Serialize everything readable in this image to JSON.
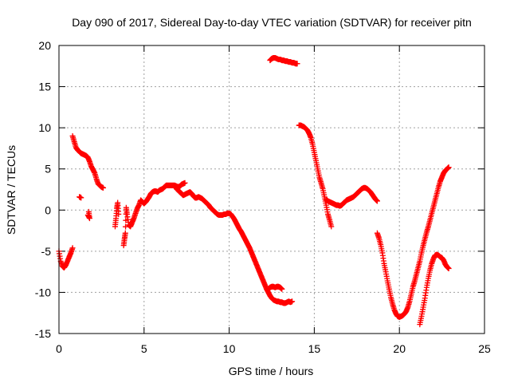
{
  "chart_data": {
    "type": "scatter",
    "title": "Day 090 of 2017, Sidereal Day-to-day VTEC variation (SDTVAR) for receiver pitn",
    "xlabel": "GPS time / hours",
    "ylabel": "SDTVAR / TECUs",
    "xlim": [
      0,
      25
    ],
    "ylim": [
      -15,
      20
    ],
    "xticks": [
      0,
      5,
      10,
      15,
      20,
      25
    ],
    "yticks": [
      -15,
      -10,
      -5,
      0,
      5,
      10,
      15,
      20
    ],
    "grid": true,
    "marker": "plus",
    "color": "#ff0000",
    "segments": [
      [
        [
          0.0,
          -5.0
        ],
        [
          0.1,
          -6.2
        ],
        [
          0.2,
          -6.8
        ],
        [
          0.3,
          -7.0
        ],
        [
          0.4,
          -6.7
        ],
        [
          0.5,
          -6.2
        ],
        [
          0.6,
          -5.7
        ],
        [
          0.7,
          -5.2
        ],
        [
          0.8,
          -4.6
        ]
      ],
      [
        [
          0.8,
          9.0
        ],
        [
          0.9,
          8.3
        ],
        [
          1.0,
          7.6
        ],
        [
          1.1,
          7.3
        ],
        [
          1.2,
          7.1
        ],
        [
          1.3,
          6.9
        ],
        [
          1.4,
          6.8
        ],
        [
          1.5,
          6.7
        ],
        [
          1.6,
          6.6
        ],
        [
          1.7,
          6.4
        ],
        [
          1.8,
          5.9
        ],
        [
          1.9,
          5.3
        ],
        [
          2.0,
          4.9
        ],
        [
          2.1,
          4.5
        ],
        [
          2.2,
          3.8
        ],
        [
          2.3,
          3.2
        ],
        [
          2.4,
          3.0
        ],
        [
          2.5,
          2.8
        ],
        [
          2.6,
          2.7
        ]
      ],
      [
        [
          1.2,
          1.6
        ],
        [
          1.3,
          1.5
        ]
      ],
      [
        [
          1.7,
          -0.6
        ],
        [
          1.8,
          -1.0
        ],
        [
          1.75,
          -0.2
        ]
      ],
      [
        [
          3.3,
          -2.0
        ],
        [
          3.35,
          -1.0
        ],
        [
          3.4,
          0.2
        ],
        [
          3.45,
          0.9
        ],
        [
          3.5,
          -0.5
        ]
      ],
      [
        [
          3.8,
          -4.3
        ],
        [
          3.85,
          -3.5
        ],
        [
          3.9,
          -2.8
        ],
        [
          3.95,
          0.3
        ],
        [
          4.0,
          -0.5
        ],
        [
          4.1,
          -1.8
        ],
        [
          4.2,
          -2.0
        ],
        [
          4.3,
          -1.5
        ],
        [
          4.4,
          -1.0
        ],
        [
          4.5,
          -0.4
        ],
        [
          4.6,
          0.2
        ],
        [
          4.7,
          0.6
        ],
        [
          4.8,
          1.2
        ],
        [
          4.9,
          1.0
        ],
        [
          5.0,
          0.8
        ],
        [
          5.1,
          1.0
        ],
        [
          5.2,
          1.3
        ],
        [
          5.3,
          1.6
        ],
        [
          5.4,
          2.0
        ],
        [
          5.5,
          2.2
        ],
        [
          5.6,
          2.3
        ],
        [
          5.7,
          2.3
        ],
        [
          5.8,
          2.2
        ],
        [
          5.9,
          2.4
        ],
        [
          6.0,
          2.5
        ],
        [
          6.1,
          2.6
        ],
        [
          6.2,
          2.8
        ],
        [
          6.3,
          3.0
        ],
        [
          6.4,
          3.0
        ],
        [
          6.5,
          3.0
        ],
        [
          6.6,
          3.0
        ],
        [
          6.7,
          3.0
        ],
        [
          6.8,
          3.0
        ],
        [
          6.9,
          2.9
        ],
        [
          7.0,
          2.8
        ],
        [
          7.1,
          2.9
        ],
        [
          7.2,
          3.1
        ],
        [
          7.3,
          3.2
        ],
        [
          7.4,
          3.3
        ]
      ],
      [
        [
          6.9,
          2.6
        ],
        [
          7.0,
          2.4
        ],
        [
          7.1,
          2.2
        ],
        [
          7.2,
          2.0
        ],
        [
          7.3,
          1.8
        ],
        [
          7.4,
          1.9
        ],
        [
          7.5,
          2.0
        ],
        [
          7.6,
          2.1
        ],
        [
          7.7,
          2.2
        ],
        [
          7.8,
          2.0
        ],
        [
          7.9,
          1.7
        ],
        [
          8.0,
          1.5
        ],
        [
          8.1,
          1.5
        ],
        [
          8.2,
          1.6
        ],
        [
          8.3,
          1.5
        ],
        [
          8.4,
          1.4
        ],
        [
          8.5,
          1.2
        ],
        [
          8.6,
          1.0
        ],
        [
          8.7,
          0.8
        ],
        [
          8.8,
          0.6
        ],
        [
          8.9,
          0.3
        ],
        [
          9.0,
          0.1
        ],
        [
          9.1,
          -0.1
        ],
        [
          9.2,
          -0.3
        ],
        [
          9.3,
          -0.5
        ],
        [
          9.4,
          -0.6
        ],
        [
          9.5,
          -0.6
        ],
        [
          9.6,
          -0.6
        ],
        [
          9.7,
          -0.5
        ],
        [
          9.8,
          -0.5
        ],
        [
          9.9,
          -0.4
        ],
        [
          10.0,
          -0.4
        ],
        [
          10.1,
          -0.5
        ],
        [
          10.2,
          -0.8
        ],
        [
          10.3,
          -1.1
        ],
        [
          10.4,
          -1.5
        ],
        [
          10.5,
          -1.9
        ],
        [
          10.6,
          -2.3
        ],
        [
          10.7,
          -2.6
        ],
        [
          10.8,
          -3.0
        ],
        [
          10.9,
          -3.4
        ],
        [
          11.0,
          -3.8
        ],
        [
          11.1,
          -4.2
        ],
        [
          11.2,
          -4.6
        ],
        [
          11.3,
          -5.1
        ],
        [
          11.4,
          -5.6
        ],
        [
          11.5,
          -6.1
        ],
        [
          11.6,
          -6.6
        ],
        [
          11.7,
          -7.1
        ],
        [
          11.8,
          -7.6
        ],
        [
          11.9,
          -8.1
        ],
        [
          12.0,
          -8.6
        ],
        [
          12.1,
          -9.1
        ],
        [
          12.2,
          -9.6
        ],
        [
          12.3,
          -10.0
        ],
        [
          12.4,
          -10.4
        ],
        [
          12.5,
          -10.7
        ],
        [
          12.6,
          -10.9
        ],
        [
          12.7,
          -11.0
        ],
        [
          12.8,
          -11.1
        ],
        [
          12.9,
          -11.1
        ],
        [
          13.0,
          -11.2
        ],
        [
          13.1,
          -11.2
        ],
        [
          13.2,
          -11.3
        ],
        [
          13.3,
          -11.3
        ],
        [
          13.4,
          -11.2
        ],
        [
          13.5,
          -11.1
        ],
        [
          13.6,
          -11.2
        ],
        [
          13.7,
          -11.1
        ]
      ],
      [
        [
          12.3,
          -9.6
        ],
        [
          12.4,
          -9.4
        ],
        [
          12.5,
          -9.3
        ],
        [
          12.6,
          -9.3
        ],
        [
          12.7,
          -9.4
        ],
        [
          12.8,
          -9.3
        ],
        [
          12.9,
          -9.3
        ],
        [
          13.0,
          -9.4
        ],
        [
          13.1,
          -9.6
        ]
      ],
      [
        [
          12.4,
          18.2
        ],
        [
          12.5,
          18.4
        ],
        [
          12.6,
          18.5
        ],
        [
          12.7,
          18.5
        ],
        [
          12.8,
          18.4
        ],
        [
          12.9,
          18.3
        ],
        [
          13.0,
          18.3
        ],
        [
          13.1,
          18.2
        ],
        [
          13.2,
          18.2
        ],
        [
          13.3,
          18.1
        ],
        [
          13.4,
          18.1
        ],
        [
          13.5,
          18.0
        ],
        [
          13.6,
          18.0
        ],
        [
          13.7,
          17.9
        ],
        [
          13.8,
          17.9
        ],
        [
          13.9,
          17.8
        ],
        [
          14.0,
          17.8
        ]
      ],
      [
        [
          14.1,
          10.3
        ],
        [
          14.2,
          10.3
        ],
        [
          14.3,
          10.2
        ],
        [
          14.4,
          10.1
        ],
        [
          14.5,
          9.9
        ],
        [
          14.6,
          9.7
        ],
        [
          14.7,
          9.3
        ],
        [
          14.8,
          8.8
        ],
        [
          14.9,
          8.0
        ],
        [
          15.0,
          7.0
        ],
        [
          15.1,
          6.0
        ],
        [
          15.2,
          5.0
        ],
        [
          15.3,
          4.0
        ],
        [
          15.4,
          3.3
        ],
        [
          15.5,
          2.6
        ],
        [
          15.6,
          1.6
        ],
        [
          15.7,
          0.6
        ],
        [
          15.8,
          -0.5
        ],
        [
          15.9,
          -1.2
        ],
        [
          16.0,
          -2.0
        ]
      ],
      [
        [
          15.7,
          1.3
        ],
        [
          15.8,
          1.1
        ],
        [
          15.9,
          1.0
        ],
        [
          16.0,
          0.9
        ],
        [
          16.1,
          0.8
        ],
        [
          16.2,
          0.7
        ],
        [
          16.3,
          0.6
        ],
        [
          16.4,
          0.6
        ],
        [
          16.5,
          0.5
        ],
        [
          16.6,
          0.6
        ],
        [
          16.7,
          0.8
        ],
        [
          16.8,
          1.0
        ],
        [
          16.9,
          1.2
        ],
        [
          17.0,
          1.3
        ],
        [
          17.1,
          1.4
        ],
        [
          17.2,
          1.5
        ],
        [
          17.3,
          1.6
        ],
        [
          17.4,
          1.8
        ],
        [
          17.5,
          2.0
        ],
        [
          17.6,
          2.2
        ],
        [
          17.7,
          2.4
        ],
        [
          17.8,
          2.6
        ],
        [
          17.9,
          2.7
        ],
        [
          18.0,
          2.7
        ],
        [
          18.1,
          2.6
        ],
        [
          18.2,
          2.4
        ],
        [
          18.3,
          2.2
        ],
        [
          18.4,
          1.9
        ],
        [
          18.5,
          1.6
        ],
        [
          18.6,
          1.3
        ],
        [
          18.7,
          1.1
        ]
      ],
      [
        [
          18.7,
          -2.8
        ],
        [
          18.8,
          -3.4
        ],
        [
          18.9,
          -4.2
        ],
        [
          19.0,
          -5.2
        ],
        [
          19.1,
          -6.5
        ],
        [
          19.2,
          -7.5
        ],
        [
          19.3,
          -8.6
        ],
        [
          19.4,
          -9.6
        ],
        [
          19.5,
          -10.6
        ],
        [
          19.6,
          -11.4
        ],
        [
          19.7,
          -12.1
        ],
        [
          19.8,
          -12.6
        ],
        [
          19.9,
          -12.9
        ],
        [
          20.0,
          -13.0
        ],
        [
          20.1,
          -12.9
        ],
        [
          20.2,
          -12.8
        ],
        [
          20.3,
          -12.6
        ],
        [
          20.4,
          -12.3
        ],
        [
          20.5,
          -11.8
        ],
        [
          20.6,
          -11.1
        ],
        [
          20.7,
          -10.2
        ],
        [
          20.8,
          -9.3
        ],
        [
          20.9,
          -8.6
        ],
        [
          21.0,
          -7.8
        ],
        [
          21.1,
          -7.0
        ],
        [
          21.2,
          -6.2
        ],
        [
          21.3,
          -5.2
        ],
        [
          21.4,
          -4.3
        ],
        [
          21.5,
          -3.5
        ],
        [
          21.6,
          -2.7
        ],
        [
          21.7,
          -2.0
        ],
        [
          21.8,
          -1.2
        ],
        [
          21.9,
          -0.4
        ],
        [
          22.0,
          0.4
        ],
        [
          22.1,
          1.2
        ],
        [
          22.2,
          2.0
        ],
        [
          22.3,
          2.8
        ],
        [
          22.4,
          3.5
        ],
        [
          22.5,
          4.0
        ],
        [
          22.6,
          4.5
        ],
        [
          22.7,
          4.8
        ],
        [
          22.8,
          5.0
        ],
        [
          22.9,
          5.2
        ]
      ],
      [
        [
          21.2,
          -13.9
        ],
        [
          21.3,
          -12.9
        ],
        [
          21.4,
          -11.8
        ],
        [
          21.5,
          -10.7
        ],
        [
          21.6,
          -9.4
        ],
        [
          21.7,
          -8.3
        ],
        [
          21.8,
          -7.3
        ],
        [
          21.9,
          -6.5
        ],
        [
          22.0,
          -5.9
        ],
        [
          22.1,
          -5.5
        ],
        [
          22.2,
          -5.4
        ],
        [
          22.3,
          -5.5
        ],
        [
          22.4,
          -5.7
        ],
        [
          22.5,
          -5.8
        ],
        [
          22.6,
          -6.1
        ],
        [
          22.7,
          -6.6
        ],
        [
          22.8,
          -6.9
        ],
        [
          22.9,
          -7.1
        ]
      ]
    ]
  }
}
